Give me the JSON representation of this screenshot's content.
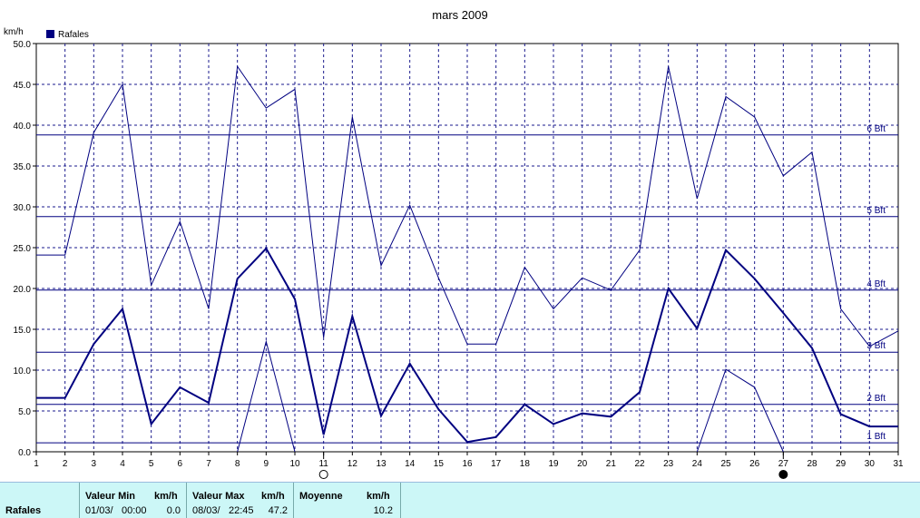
{
  "chart_data": {
    "type": "line",
    "title": "mars 2009",
    "ylabel": "km/h",
    "ylim": [
      0,
      50
    ],
    "xlim": [
      1,
      31
    ],
    "yticks": [
      "0.0",
      "5.0",
      "10.0",
      "15.0",
      "20.0",
      "25.0",
      "30.0",
      "35.0",
      "40.0",
      "45.0",
      "50.0"
    ],
    "xticks": [
      "1",
      "2",
      "3",
      "4",
      "5",
      "6",
      "7",
      "8",
      "9",
      "10",
      "11",
      "12",
      "13",
      "14",
      "15",
      "16",
      "17",
      "18",
      "19",
      "20",
      "21",
      "22",
      "23",
      "24",
      "25",
      "26",
      "27",
      "28",
      "29",
      "30",
      "31"
    ],
    "grid": true,
    "legend": {
      "position": "top-left",
      "entries": [
        "Rafales"
      ]
    },
    "series": [
      {
        "name": "Rafales",
        "x": [
          1,
          2,
          3,
          4,
          5,
          6,
          7,
          8,
          9,
          10,
          11,
          12,
          13,
          14,
          15,
          16,
          17,
          18,
          19,
          20,
          21,
          22,
          23,
          24,
          25,
          26,
          27,
          28,
          29,
          30,
          31
        ],
        "values": [
          6.6,
          6.6,
          13.2,
          17.5,
          3.4,
          7.9,
          6.0,
          21.2,
          24.9,
          18.7,
          2.1,
          16.6,
          4.4,
          10.8,
          5.2,
          1.2,
          1.8,
          5.8,
          3.4,
          4.7,
          4.3,
          7.3,
          20.0,
          15.1,
          24.7,
          21.2,
          17.0,
          12.7,
          4.6,
          3.1,
          3.1
        ]
      },
      {
        "x": [
          1,
          2,
          3,
          4,
          5,
          6,
          7,
          8,
          9,
          10,
          11,
          12,
          13,
          14,
          15,
          16,
          17,
          18,
          19,
          20,
          21,
          22,
          23,
          24,
          25,
          26,
          27,
          28,
          29,
          30,
          31
        ],
        "values": [
          24.1,
          24.1,
          39.1,
          45.0,
          20.4,
          28.2,
          17.5,
          47.2,
          42.1,
          44.4,
          14.0,
          41.0,
          22.8,
          30.2,
          21.3,
          13.2,
          13.2,
          22.6,
          17.5,
          21.3,
          19.8,
          24.7,
          47.2,
          31.0,
          43.5,
          41.0,
          33.8,
          36.7,
          17.5,
          12.9,
          14.8
        ]
      },
      {
        "x": [
          1,
          2,
          3,
          4,
          5,
          6,
          7,
          8,
          9,
          10,
          11,
          12,
          13,
          14,
          15,
          16,
          17,
          18,
          19,
          20,
          21,
          22,
          23,
          24,
          25,
          26,
          27,
          28,
          29,
          30,
          31
        ],
        "values": [
          null,
          null,
          null,
          null,
          null,
          null,
          null,
          0,
          13.5,
          0,
          null,
          null,
          null,
          null,
          null,
          null,
          null,
          null,
          null,
          null,
          null,
          null,
          null,
          0,
          10.1,
          7.9,
          0,
          null,
          null,
          null,
          null
        ]
      }
    ],
    "reference_lines": [
      {
        "label": "1 Bft",
        "value": 1.1
      },
      {
        "label": "2 Bft",
        "value": 5.8
      },
      {
        "label": "3 Bft",
        "value": 12.2
      },
      {
        "label": "4 Bft",
        "value": 19.8
      },
      {
        "label": "5 Bft",
        "value": 28.8
      },
      {
        "label": "6 Bft",
        "value": 38.8
      }
    ],
    "moon_phases": [
      {
        "day": 11,
        "phase": "full-moon"
      },
      {
        "day": 27,
        "phase": "new-moon"
      }
    ],
    "colors": {
      "series": "#000080",
      "grid": "#1a1a8c",
      "axis": "#000000"
    }
  },
  "stats": {
    "row_label": "Rafales",
    "min": {
      "header": "Valeur Min",
      "unit": "km/h",
      "date": "01/03/",
      "time": "00:00",
      "value": "0.0"
    },
    "max": {
      "header": "Valeur Max",
      "unit": "km/h",
      "date": "08/03/",
      "time": "22:45",
      "value": "47.2"
    },
    "avg": {
      "header": "Moyenne",
      "unit": "km/h",
      "value": "10.2"
    }
  }
}
